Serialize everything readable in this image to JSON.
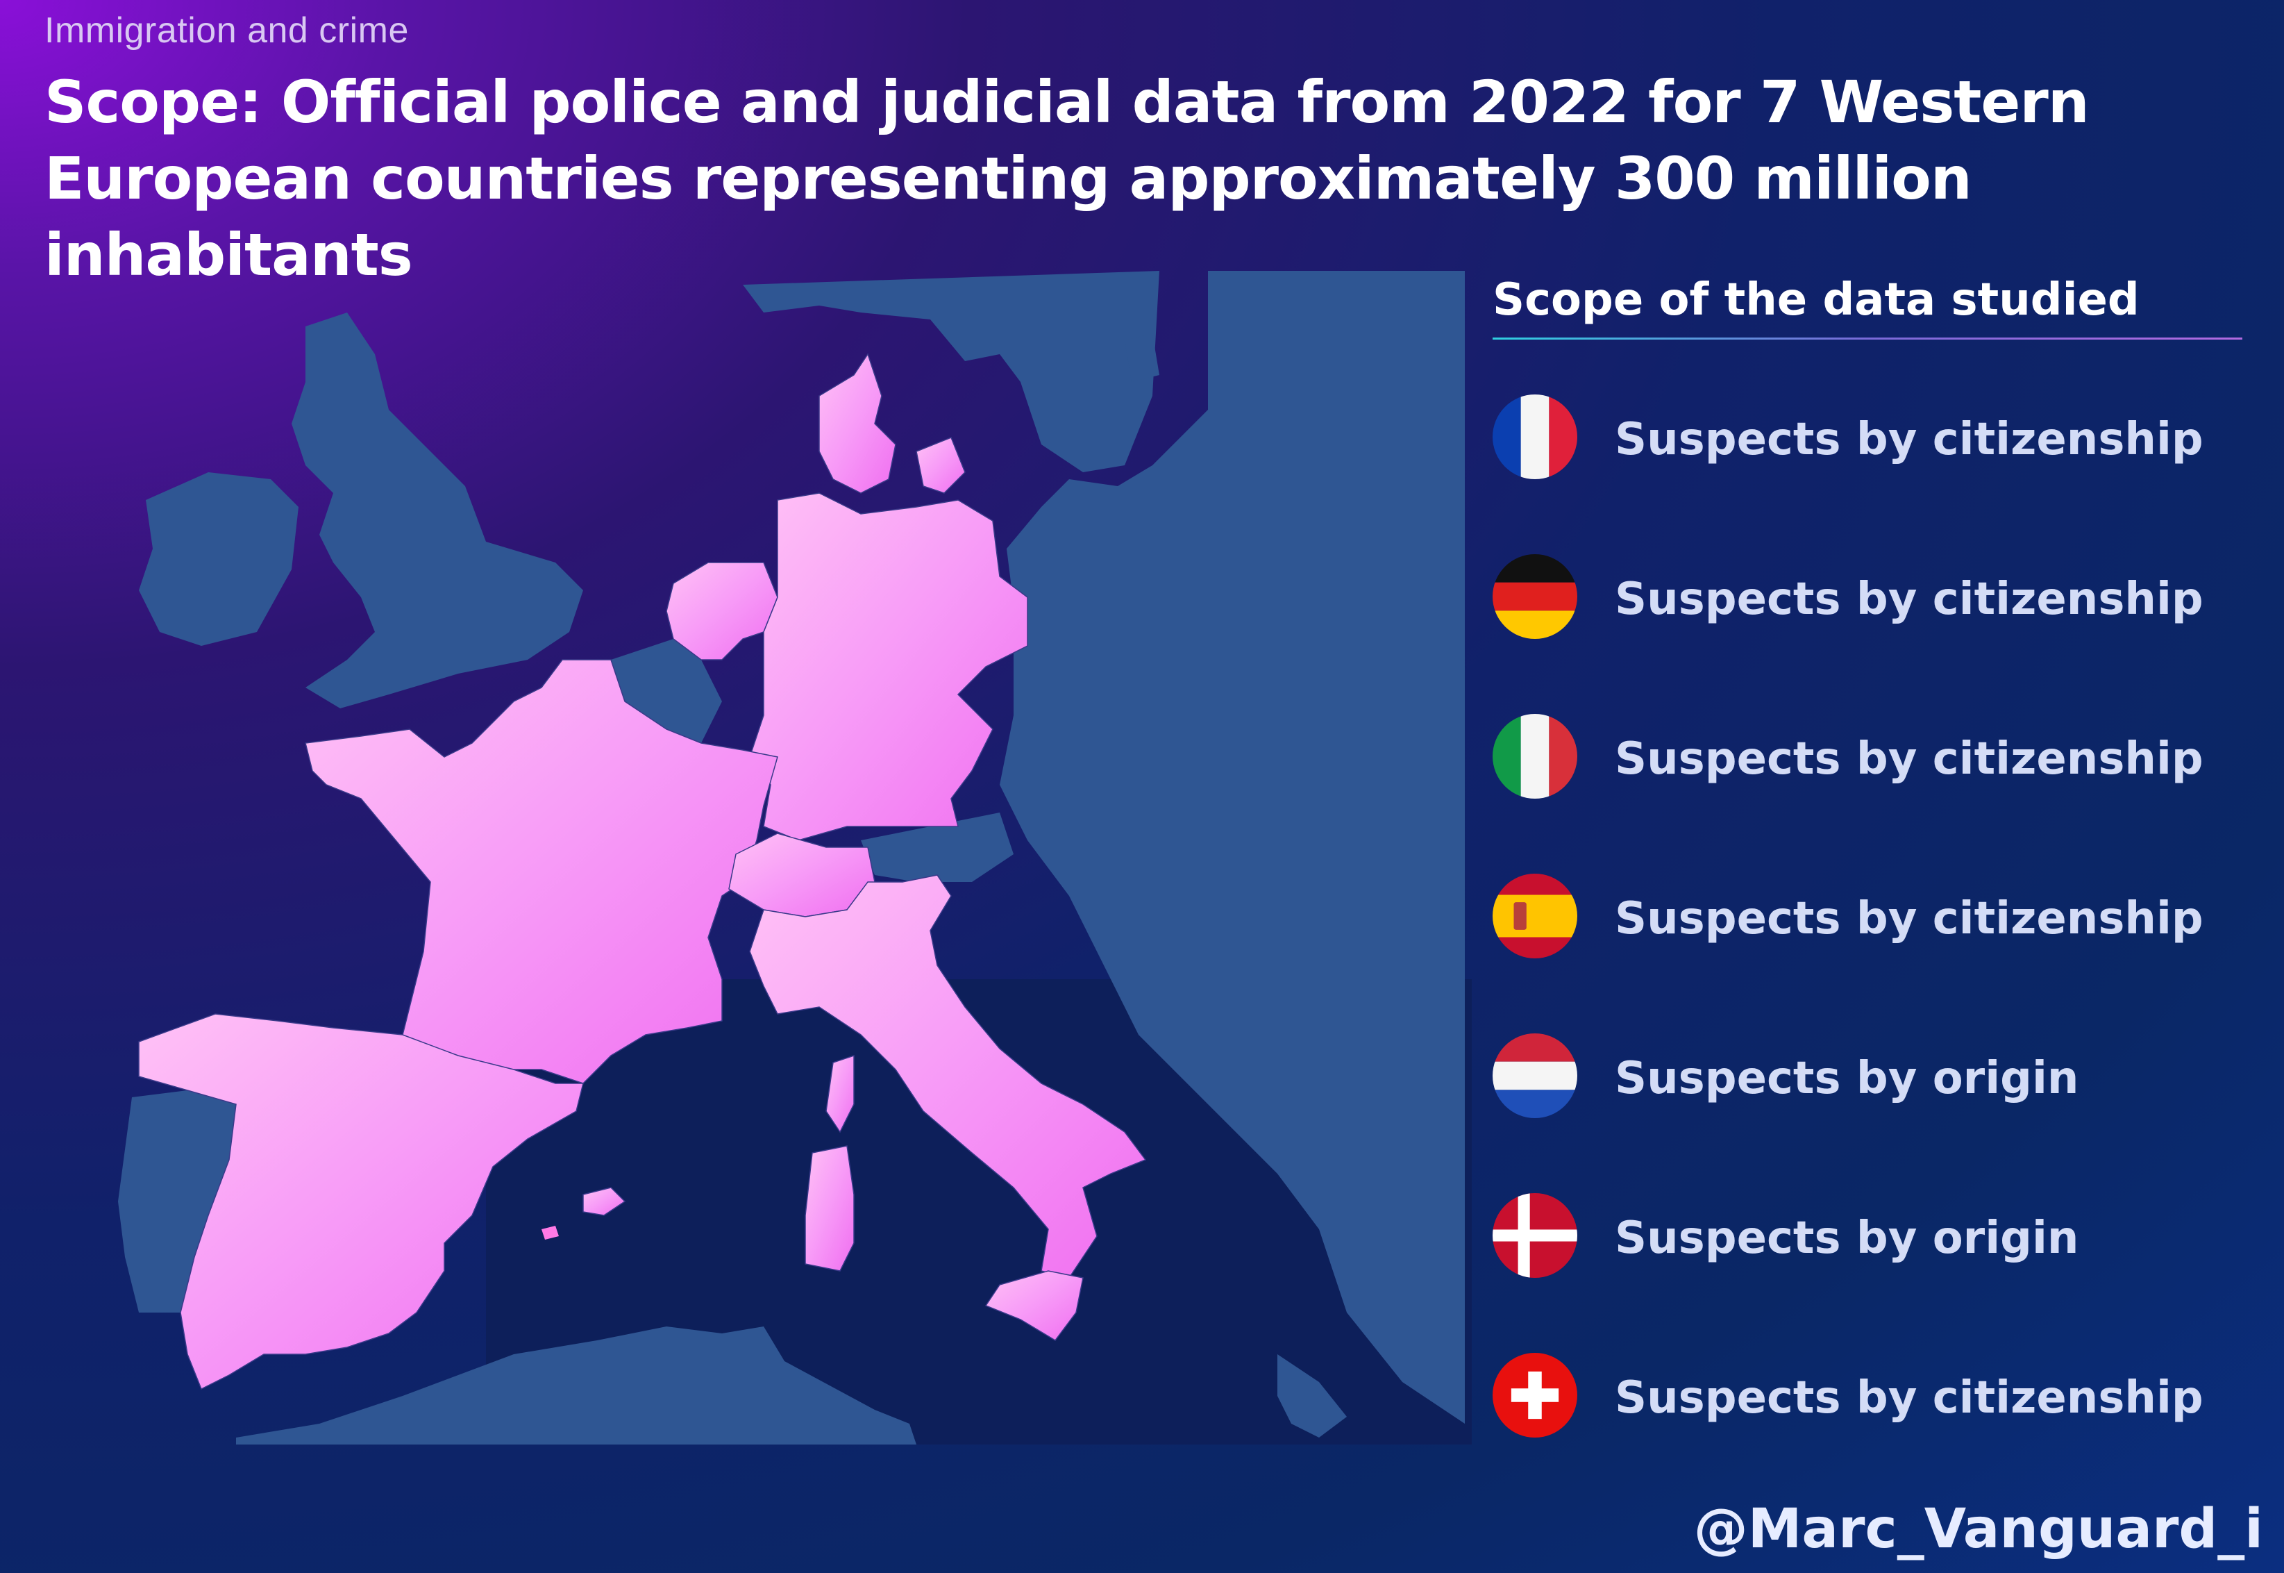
{
  "header": {
    "subtitle": "Immigration and crime",
    "title": "Scope: Official police and judicial data from 2022 for 7 Western European countries representing approximately 300 million inhabitants"
  },
  "legend": {
    "heading": "Scope of the data studied",
    "items": [
      {
        "country_flag": "france-flag-icon",
        "label": "Suspects by citizenship"
      },
      {
        "country_flag": "germany-flag-icon",
        "label": "Suspects by citizenship"
      },
      {
        "country_flag": "italy-flag-icon",
        "label": "Suspects by citizenship"
      },
      {
        "country_flag": "spain-flag-icon",
        "label": "Suspects by citizenship"
      },
      {
        "country_flag": "netherlands-flag-icon",
        "label": "Suspects by origin"
      },
      {
        "country_flag": "denmark-flag-icon",
        "label": "Suspects by origin"
      },
      {
        "country_flag": "switzerland-flag-icon",
        "label": "Suspects by citizenship"
      }
    ]
  },
  "map": {
    "highlighted_countries": [
      "France",
      "Germany",
      "Italy",
      "Spain",
      "Netherlands",
      "Denmark",
      "Switzerland"
    ],
    "highlight_color": "#f59af5",
    "other_land_color": "#2f5693",
    "sea_color": "#0e1f5c"
  },
  "footer": {
    "credit": "@Marc_Vanguard_i"
  }
}
